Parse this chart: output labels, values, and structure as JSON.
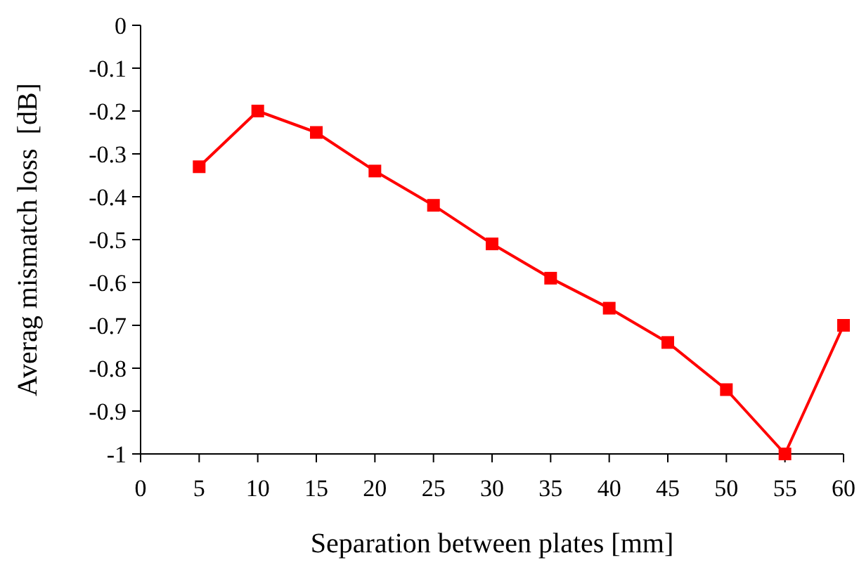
{
  "chart_data": {
    "type": "line",
    "xlabel": "Separation between plates [mm]",
    "ylabel": "Averag mismatch loss  [dB]",
    "x": [
      5,
      10,
      15,
      20,
      25,
      30,
      35,
      40,
      45,
      50,
      55,
      60
    ],
    "series": [
      {
        "color": "#ff0000",
        "values": [
          -0.33,
          -0.2,
          -0.25,
          -0.34,
          -0.42,
          -0.51,
          -0.59,
          -0.66,
          -0.74,
          -0.85,
          -1,
          -0.7
        ]
      }
    ],
    "xlim": [
      0,
      60
    ],
    "xticks": [
      0,
      5,
      10,
      15,
      20,
      25,
      30,
      35,
      40,
      45,
      50,
      55,
      60
    ],
    "ylim": [
      -1,
      0
    ],
    "yticks": [
      -1,
      -0.9,
      -0.8,
      -0.7,
      -0.6,
      -0.5,
      -0.4,
      -0.3,
      -0.2,
      -0.1,
      0
    ],
    "grid": false,
    "marker": "square",
    "line_style": "solid"
  }
}
